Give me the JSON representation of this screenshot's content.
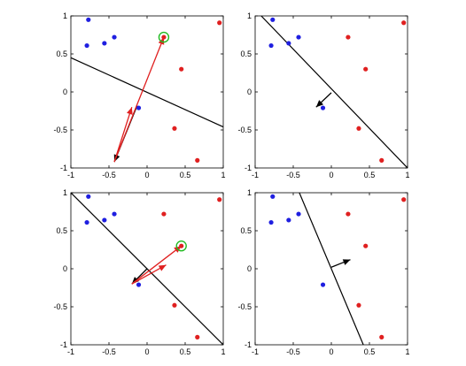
{
  "chart_data": [
    {
      "type": "scatter",
      "title": "",
      "xlabel": "",
      "ylabel": "",
      "xlim": [
        -1,
        1
      ],
      "ylim": [
        -1,
        1
      ],
      "xticks": [
        -1,
        -0.5,
        0,
        0.5,
        1
      ],
      "yticks": [
        -1,
        -0.5,
        0,
        0.5,
        1
      ],
      "xtick_labels": [
        "-1",
        "-0.5",
        "0",
        "0.5",
        "1"
      ],
      "ytick_labels": [
        "-1",
        "-0.5",
        "0",
        "0.5",
        "1"
      ],
      "grid": false,
      "series": [
        {
          "color": "#1f1fe0",
          "points": [
            [
              -0.77,
              0.95
            ],
            [
              -0.79,
              0.61
            ],
            [
              -0.56,
              0.64
            ],
            [
              -0.43,
              0.72
            ],
            [
              -0.11,
              -0.21
            ]
          ]
        },
        {
          "color": "#e02020",
          "points": [
            [
              0.22,
              0.72
            ],
            [
              0.95,
              0.91
            ],
            [
              0.45,
              0.3
            ],
            [
              0.36,
              -0.48
            ],
            [
              0.66,
              -0.9
            ]
          ]
        }
      ],
      "highlight": {
        "point": [
          0.22,
          0.72
        ],
        "color": "#22bb22"
      },
      "decision_line": [
        [
          -1,
          0.45
        ],
        [
          1,
          -0.46
        ]
      ],
      "arrows": [
        {
          "from": [
            -0.13,
            -0.18
          ],
          "to": [
            -0.43,
            -0.92
          ],
          "color": "#000000"
        },
        {
          "from": [
            -0.43,
            -0.92
          ],
          "to": [
            -0.2,
            -0.2
          ],
          "color": "#e02020"
        },
        {
          "from": [
            -0.43,
            -0.92
          ],
          "to": [
            0.22,
            0.72
          ],
          "color": "#e02020"
        }
      ]
    },
    {
      "type": "scatter",
      "title": "",
      "xlabel": "",
      "ylabel": "",
      "xlim": [
        -1,
        1
      ],
      "ylim": [
        -1,
        1
      ],
      "xticks": [
        -1,
        -0.5,
        0,
        0.5,
        1
      ],
      "yticks": [
        -1,
        -0.5,
        0,
        0.5,
        1
      ],
      "xtick_labels": [
        "-1",
        "-0.5",
        "0",
        "0.5",
        "1"
      ],
      "ytick_labels": [
        "-1",
        "-0.5",
        "0",
        "0.5",
        "1"
      ],
      "grid": false,
      "series": [
        {
          "color": "#1f1fe0",
          "points": [
            [
              -0.77,
              0.95
            ],
            [
              -0.79,
              0.61
            ],
            [
              -0.56,
              0.64
            ],
            [
              -0.43,
              0.72
            ],
            [
              -0.11,
              -0.21
            ]
          ]
        },
        {
          "color": "#e02020",
          "points": [
            [
              0.22,
              0.72
            ],
            [
              0.95,
              0.91
            ],
            [
              0.45,
              0.3
            ],
            [
              0.36,
              -0.48
            ],
            [
              0.66,
              -0.9
            ]
          ]
        }
      ],
      "highlight": null,
      "decision_line": [
        [
          -0.92,
          1
        ],
        [
          1,
          -1
        ]
      ],
      "arrows": [
        {
          "from": [
            0.0,
            -0.01
          ],
          "to": [
            -0.2,
            -0.2
          ],
          "color": "#000000"
        }
      ]
    },
    {
      "type": "scatter",
      "title": "",
      "xlabel": "",
      "ylabel": "",
      "xlim": [
        -1,
        1
      ],
      "ylim": [
        -1,
        1
      ],
      "xticks": [
        -1,
        -0.5,
        0,
        0.5,
        1
      ],
      "yticks": [
        -1,
        -0.5,
        0,
        0.5,
        1
      ],
      "xtick_labels": [
        "-1",
        "-0.5",
        "0",
        "0.5",
        "1"
      ],
      "ytick_labels": [
        "-1",
        "-0.5",
        "0",
        "0.5",
        "1"
      ],
      "grid": false,
      "series": [
        {
          "color": "#1f1fe0",
          "points": [
            [
              -0.77,
              0.95
            ],
            [
              -0.79,
              0.61
            ],
            [
              -0.56,
              0.64
            ],
            [
              -0.43,
              0.72
            ],
            [
              -0.11,
              -0.21
            ]
          ]
        },
        {
          "color": "#e02020",
          "points": [
            [
              0.22,
              0.72
            ],
            [
              0.95,
              0.91
            ],
            [
              0.45,
              0.3
            ],
            [
              0.36,
              -0.48
            ],
            [
              0.66,
              -0.9
            ]
          ]
        }
      ],
      "highlight": {
        "point": [
          0.45,
          0.3
        ],
        "color": "#22bb22"
      },
      "decision_line": [
        [
          -1,
          1
        ],
        [
          1,
          -1
        ]
      ],
      "arrows": [
        {
          "from": [
            0.0,
            0.0
          ],
          "to": [
            -0.2,
            -0.2
          ],
          "color": "#000000"
        },
        {
          "from": [
            -0.2,
            -0.2
          ],
          "to": [
            0.25,
            0.05
          ],
          "color": "#e02020"
        },
        {
          "from": [
            -0.2,
            -0.2
          ],
          "to": [
            0.45,
            0.3
          ],
          "color": "#e02020"
        }
      ]
    },
    {
      "type": "scatter",
      "title": "",
      "xlabel": "",
      "ylabel": "",
      "xlim": [
        -1,
        1
      ],
      "ylim": [
        -1,
        1
      ],
      "xticks": [
        -1,
        -0.5,
        0,
        0.5,
        1
      ],
      "yticks": [
        -1,
        -0.5,
        0,
        0.5,
        1
      ],
      "xtick_labels": [
        "-1",
        "-0.5",
        "0",
        "0.5",
        "1"
      ],
      "ytick_labels": [
        "-1",
        "-0.5",
        "0",
        "0.5",
        "1"
      ],
      "grid": false,
      "series": [
        {
          "color": "#1f1fe0",
          "points": [
            [
              -0.77,
              0.95
            ],
            [
              -0.79,
              0.61
            ],
            [
              -0.56,
              0.64
            ],
            [
              -0.43,
              0.72
            ],
            [
              -0.11,
              -0.21
            ]
          ]
        },
        {
          "color": "#e02020",
          "points": [
            [
              0.22,
              0.72
            ],
            [
              0.95,
              0.91
            ],
            [
              0.45,
              0.3
            ],
            [
              0.36,
              -0.48
            ],
            [
              0.66,
              -0.9
            ]
          ]
        }
      ],
      "highlight": null,
      "decision_line": [
        [
          -0.42,
          1
        ],
        [
          0.42,
          -1
        ]
      ],
      "arrows": [
        {
          "from": [
            0.0,
            0.02
          ],
          "to": [
            0.25,
            0.12
          ],
          "color": "#000000"
        }
      ]
    }
  ]
}
